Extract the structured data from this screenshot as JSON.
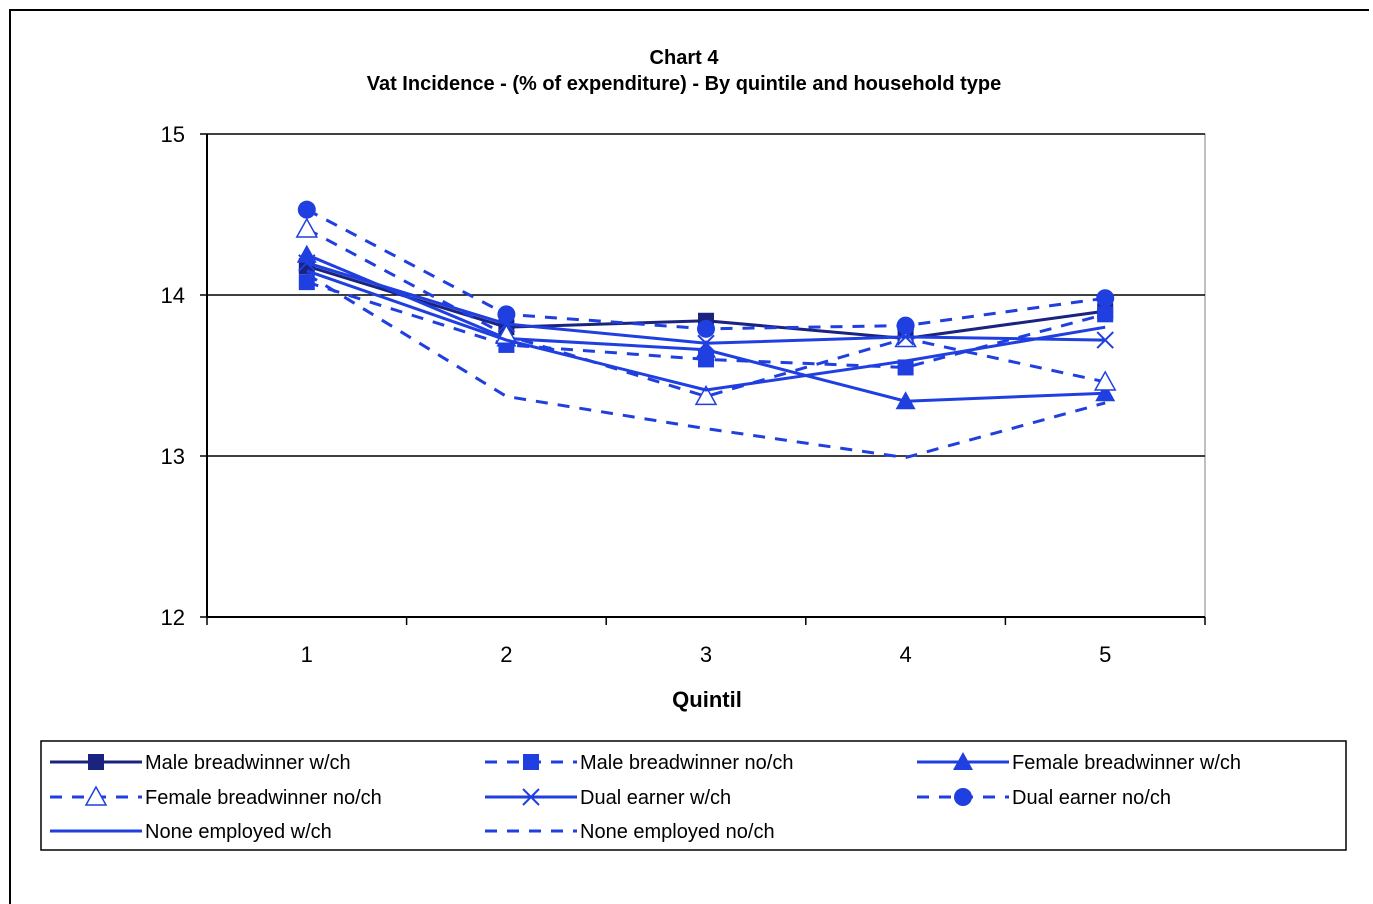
{
  "chart_data": {
    "type": "line",
    "title": "Chart 4",
    "subtitle": "Vat Incidence - (% of expenditure) - By quintile and household type",
    "xlabel": "Quintil",
    "ylabel": "",
    "categories": [
      "1",
      "2",
      "3",
      "4",
      "5"
    ],
    "ylim": [
      12,
      15
    ],
    "yticks": [
      "12",
      "13",
      "14",
      "15"
    ],
    "gridlines": [
      13,
      14,
      15
    ],
    "legend_position": "bottom",
    "series": [
      {
        "name": "Male breadwinner w/ch",
        "values": [
          14.18,
          13.8,
          13.84,
          13.73,
          13.9
        ],
        "color": "#1a237e",
        "dash": "solid",
        "marker": "square"
      },
      {
        "name": "Male breadwinner no/ch",
        "values": [
          14.08,
          13.69,
          13.6,
          13.55,
          13.88
        ],
        "color": "#1f3fe0",
        "dash": "dashed",
        "marker": "square"
      },
      {
        "name": "Female breadwinner w/ch",
        "values": [
          14.25,
          13.73,
          13.66,
          13.34,
          13.39
        ],
        "color": "#1f3fe0",
        "dash": "solid",
        "marker": "triangle"
      },
      {
        "name": "Female breadwinner no/ch",
        "values": [
          14.41,
          13.75,
          13.37,
          13.73,
          13.46
        ],
        "color": "#1f3fe0",
        "dash": "dashed",
        "marker": "triangle-open"
      },
      {
        "name": "Dual earner w/ch",
        "values": [
          14.2,
          13.82,
          13.7,
          13.74,
          13.72
        ],
        "color": "#1f3fe0",
        "dash": "solid",
        "marker": "x"
      },
      {
        "name": "Dual earner no/ch",
        "values": [
          14.53,
          13.88,
          13.79,
          13.81,
          13.98
        ],
        "color": "#1f3fe0",
        "dash": "dashed",
        "marker": "circle"
      },
      {
        "name": "None employed w/ch",
        "values": [
          14.15,
          13.72,
          13.41,
          13.59,
          13.8
        ],
        "color": "#1f3fe0",
        "dash": "solid",
        "marker": "none"
      },
      {
        "name": "None employed no/ch",
        "values": [
          14.13,
          13.37,
          13.17,
          12.99,
          13.33
        ],
        "color": "#1f3fe0",
        "dash": "dashed",
        "marker": "none"
      }
    ]
  }
}
